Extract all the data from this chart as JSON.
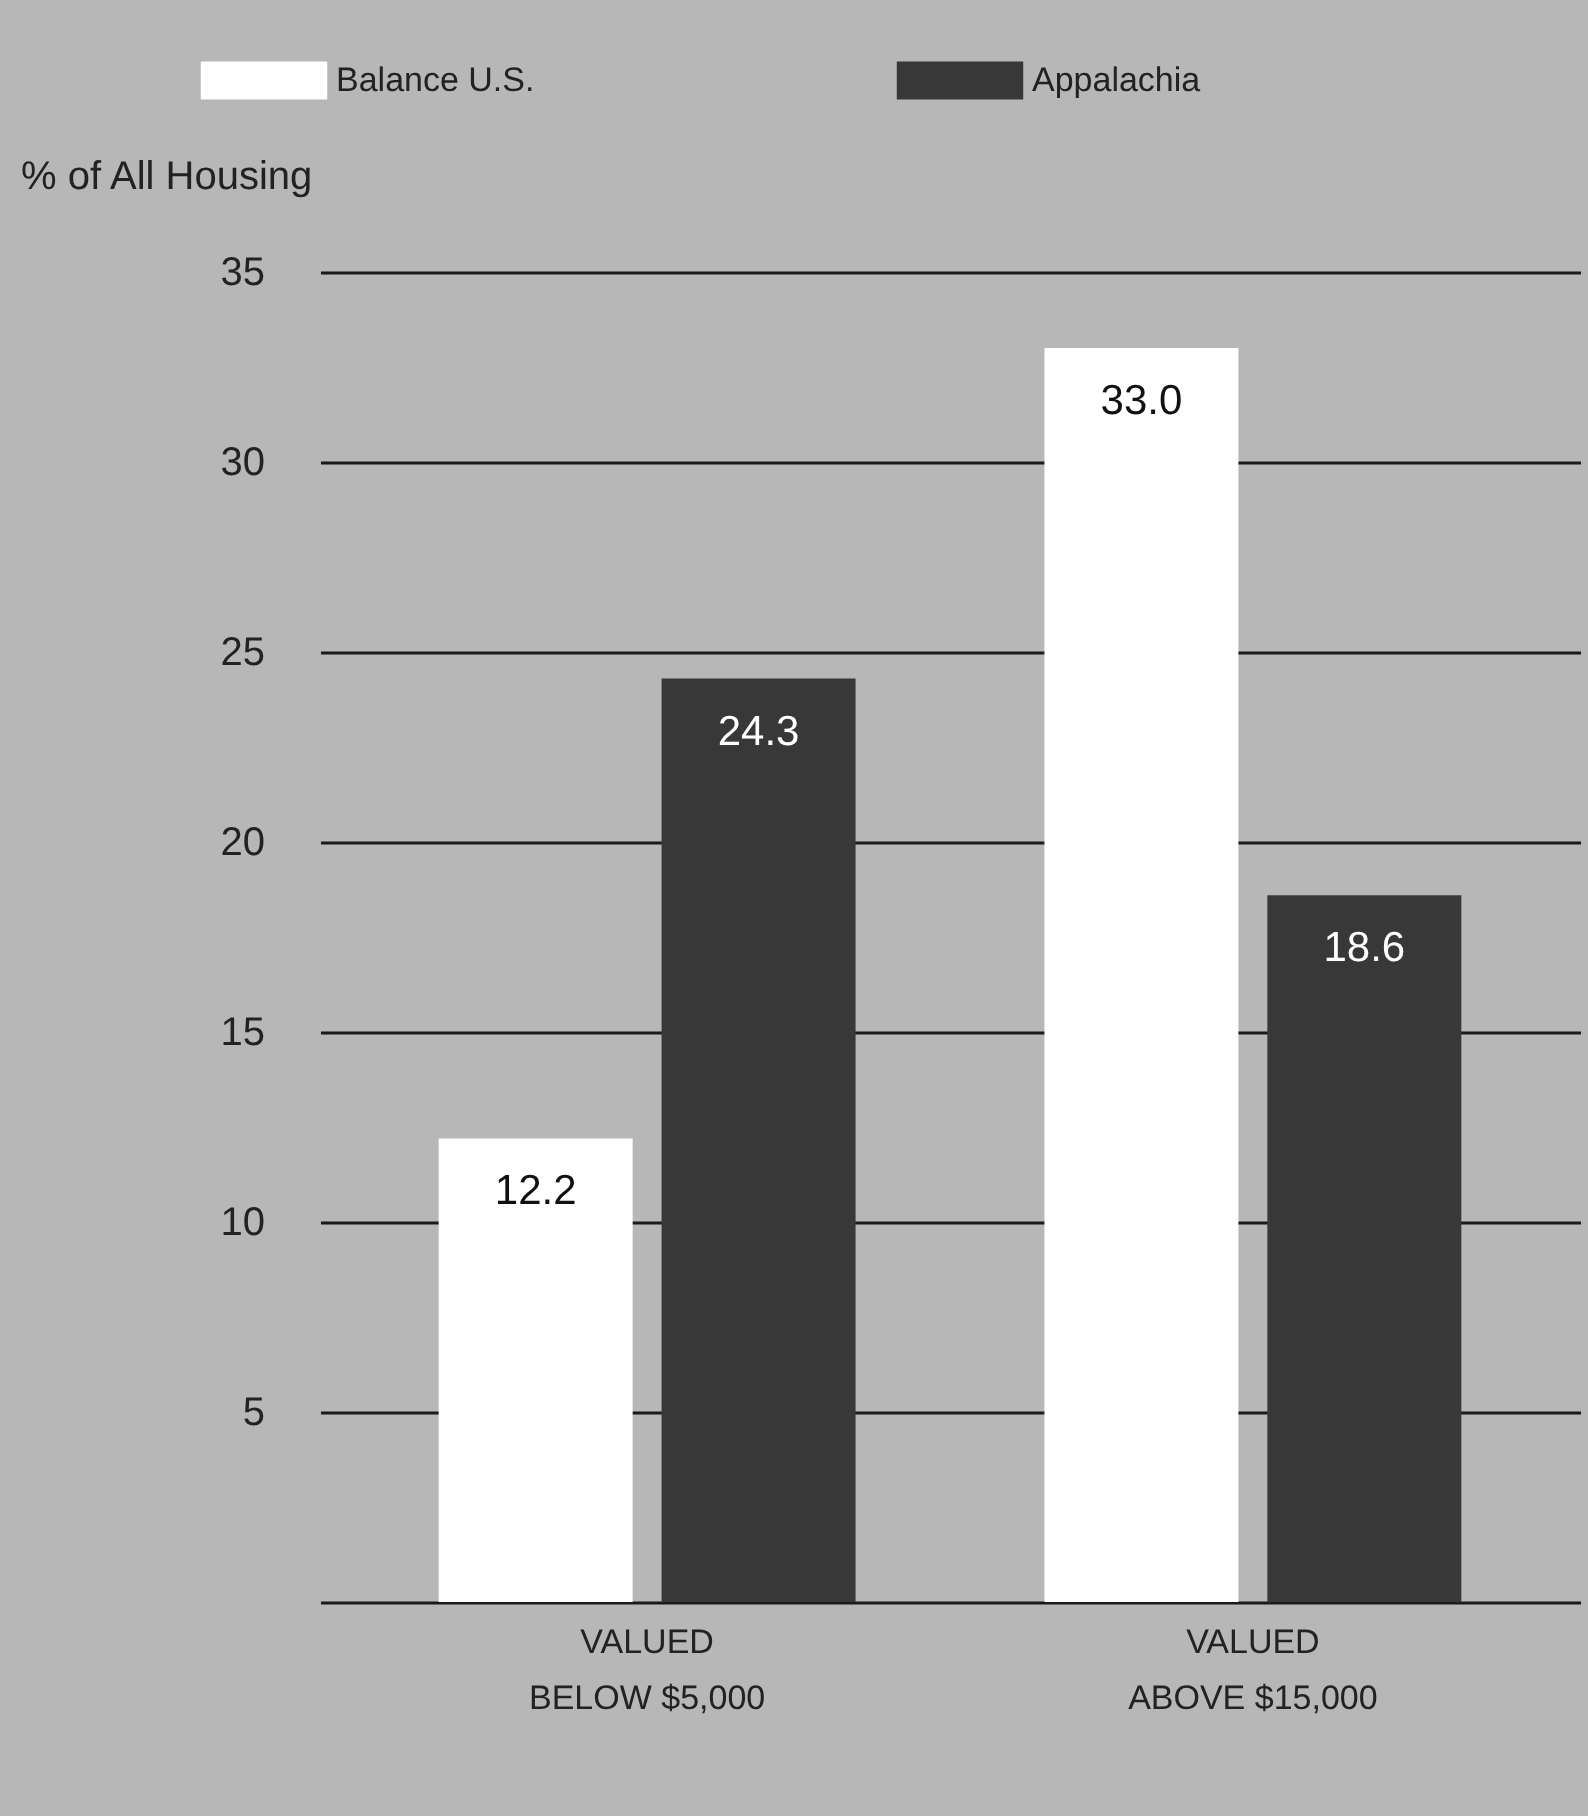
{
  "chart_data": {
    "type": "bar",
    "ylabel": "% of All Housing",
    "categories": [
      "VALUED BELOW $5,000",
      "VALUED ABOVE $15,000"
    ],
    "series": [
      {
        "name": "Balance U.S.",
        "color": "#ffffff",
        "values": [
          12.2,
          33.0
        ],
        "value_labels": [
          "12.2",
          "33.0"
        ]
      },
      {
        "name": "Appalachia",
        "color": "#383838",
        "values": [
          24.3,
          18.6
        ],
        "value_labels": [
          "24.3",
          "18.6"
        ]
      }
    ],
    "ylim": [
      0,
      35
    ],
    "yticks": [
      5,
      10,
      15,
      20,
      25,
      30,
      35
    ],
    "grid": "y",
    "legend": "top"
  }
}
